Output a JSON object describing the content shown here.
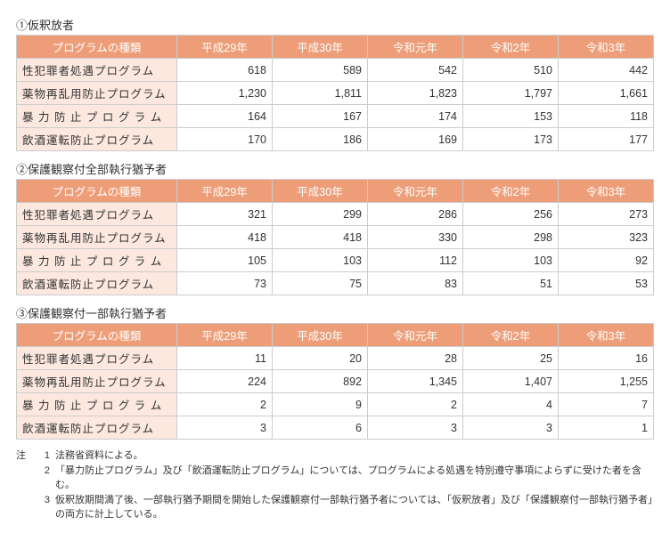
{
  "sections": [
    {
      "title": "①仮釈放者",
      "header_label": "プログラムの種類",
      "years": [
        "平成29年",
        "平成30年",
        "令和元年",
        "令和2年",
        "令和3年"
      ],
      "rows": [
        {
          "label": "性犯罪者処遇プログラム",
          "values": [
            "618",
            "589",
            "542",
            "510",
            "442"
          ]
        },
        {
          "label": "薬物再乱用防止プログラム",
          "values": [
            "1,230",
            "1,811",
            "1,823",
            "1,797",
            "1,661"
          ]
        },
        {
          "label": "暴 力 防 止 プ ロ グ ラ ム",
          "values": [
            "164",
            "167",
            "174",
            "153",
            "118"
          ]
        },
        {
          "label": "飲酒運転防止プログラム",
          "values": [
            "170",
            "186",
            "169",
            "173",
            "177"
          ]
        }
      ]
    },
    {
      "title": "②保護観察付全部執行猶予者",
      "header_label": "プログラムの種類",
      "years": [
        "平成29年",
        "平成30年",
        "令和元年",
        "令和2年",
        "令和3年"
      ],
      "rows": [
        {
          "label": "性犯罪者処遇プログラム",
          "values": [
            "321",
            "299",
            "286",
            "256",
            "273"
          ]
        },
        {
          "label": "薬物再乱用防止プログラム",
          "values": [
            "418",
            "418",
            "330",
            "298",
            "323"
          ]
        },
        {
          "label": "暴 力 防 止 プ ロ グ ラ ム",
          "values": [
            "105",
            "103",
            "112",
            "103",
            "92"
          ]
        },
        {
          "label": "飲酒運転防止プログラム",
          "values": [
            "73",
            "75",
            "83",
            "51",
            "53"
          ]
        }
      ]
    },
    {
      "title": "③保護観察付一部執行猶予者",
      "header_label": "プログラムの種類",
      "years": [
        "平成29年",
        "平成30年",
        "令和元年",
        "令和2年",
        "令和3年"
      ],
      "rows": [
        {
          "label": "性犯罪者処遇プログラム",
          "values": [
            "11",
            "20",
            "28",
            "25",
            "16"
          ]
        },
        {
          "label": "薬物再乱用防止プログラム",
          "values": [
            "224",
            "892",
            "1,345",
            "1,407",
            "1,255"
          ]
        },
        {
          "label": "暴 力 防 止 プ ロ グ ラ ム",
          "values": [
            "2",
            "9",
            "2",
            "4",
            "7"
          ]
        },
        {
          "label": "飲酒運転防止プログラム",
          "values": [
            "3",
            "6",
            "3",
            "3",
            "1"
          ]
        }
      ]
    }
  ],
  "notes": {
    "label": "注",
    "items": [
      {
        "num": "1",
        "text": "法務省資料による。"
      },
      {
        "num": "2",
        "text": "「暴力防止プログラム」及び「飲酒運転防止プログラム」については、プログラムによる処遇を特別遵守事項によらずに受けた者を含む。"
      },
      {
        "num": "3",
        "text": "仮釈放期間満了後、一部執行猶予期間を開始した保護観察付一部執行猶予者については、「仮釈放者」及び「保護観察付一部執行猶予者」の両方に計上している。"
      }
    ]
  }
}
